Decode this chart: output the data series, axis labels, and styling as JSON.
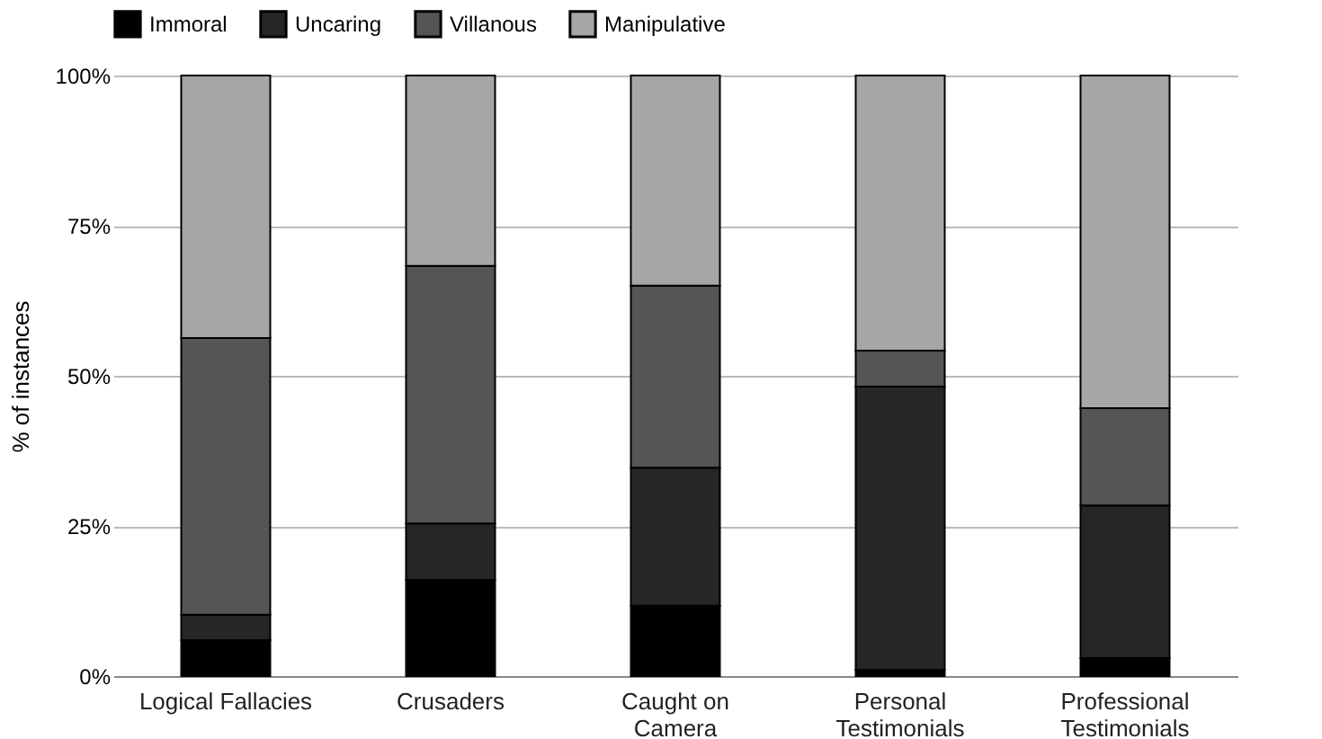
{
  "chart_data": {
    "type": "bar",
    "stacked": true,
    "ylabel": "% of instances",
    "categories": [
      "Logical Fallacies",
      "Crusaders",
      "Caught on\nCamera",
      "Personal\nTestimonials",
      "Professional\nTestimonials"
    ],
    "series": [
      {
        "name": "Immoral",
        "color": "#000000",
        "values": [
          6,
          16,
          11.7,
          1,
          3
        ]
      },
      {
        "name": "Uncaring",
        "color": "#262626",
        "values": [
          4.2,
          9.4,
          23,
          47.2,
          25.4
        ]
      },
      {
        "name": "Villanous",
        "color": "#555555",
        "values": [
          46.1,
          42.9,
          30.3,
          6,
          16.2
        ]
      },
      {
        "name": "Manipulative",
        "color": "#a6a6a6",
        "values": [
          43.7,
          31.7,
          35,
          45.8,
          55.4
        ]
      }
    ],
    "ylim": [
      0,
      100
    ],
    "yticks": [
      {
        "value": 0,
        "label": "0%"
      },
      {
        "value": 25,
        "label": "25%"
      },
      {
        "value": 50,
        "label": "50%"
      },
      {
        "value": 75,
        "label": "75%"
      },
      {
        "value": 100,
        "label": "100%"
      }
    ],
    "grid": "y",
    "legend": "top"
  }
}
